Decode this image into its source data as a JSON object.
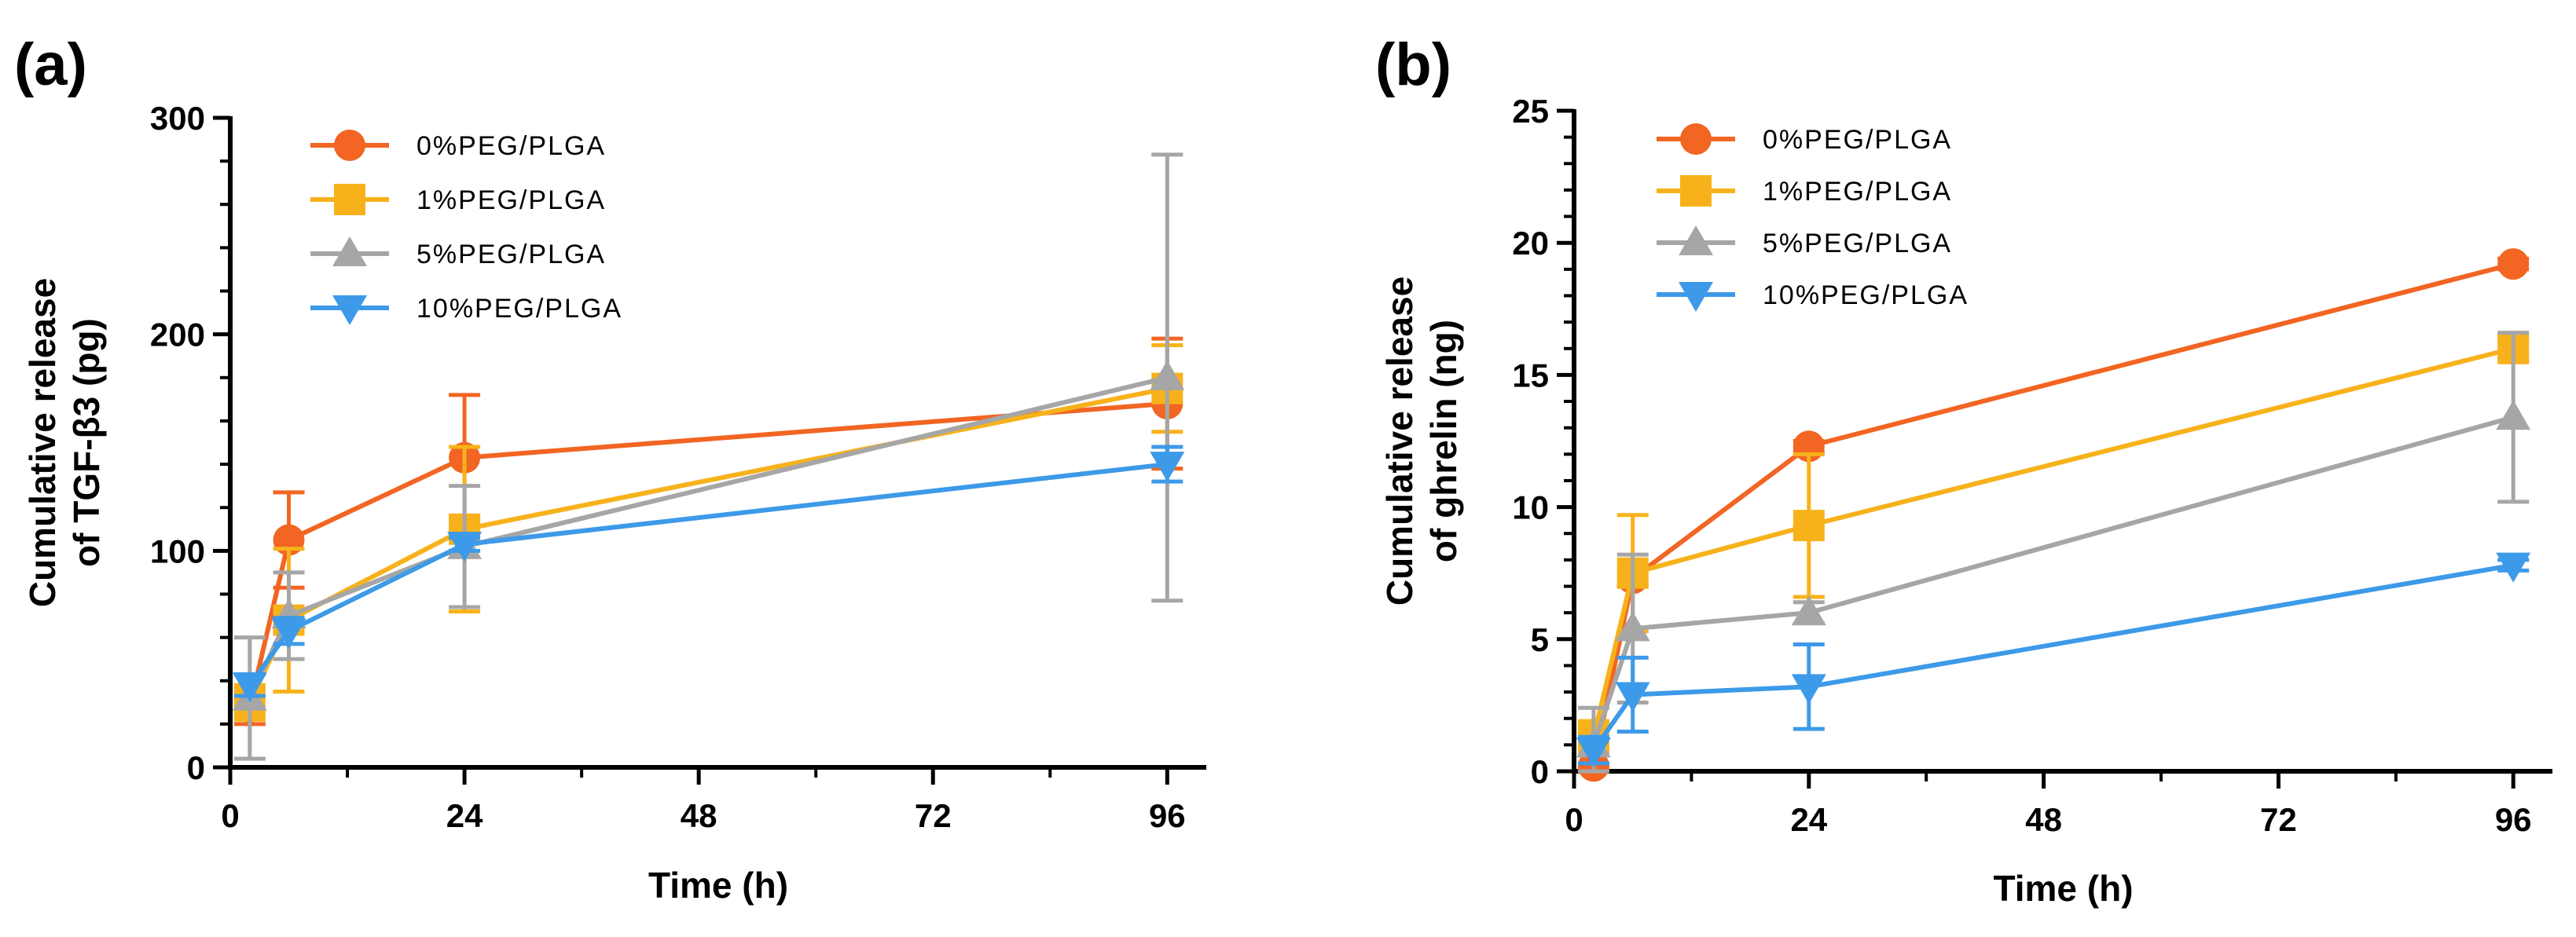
{
  "chart_data": [
    {
      "type": "line",
      "panel_label": "(a)",
      "xlabel": "Time (h)",
      "ylabel_line1": "Cumulative release",
      "ylabel_line2": "of TGF-β3 (pg)",
      "xlim": [
        0,
        100
      ],
      "ylim": [
        0,
        300
      ],
      "x_ticks": [
        0,
        24,
        48,
        72,
        96
      ],
      "x_tick_labels": [
        "0",
        "24",
        "48",
        "72",
        "96"
      ],
      "y_ticks": [
        0,
        100,
        200,
        300
      ],
      "y_tick_labels": [
        "0",
        "100",
        "200",
        "300"
      ],
      "x": [
        2,
        6,
        24,
        96
      ],
      "legend_position": "top-left",
      "series": [
        {
          "name": "0%PEG/PLGA",
          "color": "#f26522",
          "marker": "circle",
          "values": [
            28,
            105,
            143,
            168
          ],
          "errors": [
            8,
            22,
            29,
            30
          ]
        },
        {
          "name": "1%PEG/PLGA",
          "color": "#f7b21b",
          "marker": "square",
          "values": [
            30,
            68,
            110,
            175
          ],
          "errors": [
            8,
            33,
            38,
            20
          ]
        },
        {
          "name": "5%PEG/PLGA",
          "color": "#a6a6a6",
          "marker": "triangle-up",
          "values": [
            32,
            70,
            102,
            180
          ],
          "errors": [
            28,
            20,
            28,
            103
          ]
        },
        {
          "name": "10%PEG/PLGA",
          "color": "#3d9ae8",
          "marker": "triangle-down",
          "values": [
            38,
            63,
            103,
            140
          ],
          "errors": [
            5,
            6,
            3,
            8
          ]
        }
      ]
    },
    {
      "type": "line",
      "panel_label": "(b)",
      "xlabel": "Time (h)",
      "ylabel_line1": "Cumulative release",
      "ylabel_line2": "of ghrelin (ng)",
      "xlim": [
        0,
        100
      ],
      "ylim": [
        0,
        25
      ],
      "x_ticks": [
        0,
        24,
        48,
        72,
        96
      ],
      "x_tick_labels": [
        "0",
        "24",
        "48",
        "72",
        "96"
      ],
      "y_ticks": [
        0,
        5,
        10,
        15,
        20,
        25
      ],
      "y_tick_labels": [
        "0",
        "5",
        "10",
        "15",
        "20",
        "25"
      ],
      "x": [
        2,
        6,
        24,
        96
      ],
      "legend_position": "top-left",
      "series": [
        {
          "name": "0%PEG/PLGA",
          "color": "#f26522",
          "marker": "circle",
          "values": [
            0.2,
            7.3,
            12.3,
            19.2
          ],
          "errors": [
            0.1,
            0.3,
            0.2,
            0.2
          ]
        },
        {
          "name": "1%PEG/PLGA",
          "color": "#f7b21b",
          "marker": "square",
          "values": [
            1.3,
            7.5,
            9.3,
            16.0
          ],
          "errors": [
            0.6,
            2.2,
            2.7,
            0.4
          ]
        },
        {
          "name": "5%PEG/PLGA",
          "color": "#a6a6a6",
          "marker": "triangle-up",
          "values": [
            1.0,
            5.4,
            6.0,
            13.4
          ],
          "errors": [
            1.4,
            2.8,
            0.4,
            3.2
          ]
        },
        {
          "name": "10%PEG/PLGA",
          "color": "#3d9ae8",
          "marker": "triangle-down",
          "values": [
            0.8,
            2.9,
            3.2,
            7.8
          ],
          "errors": [
            0.5,
            1.4,
            1.6,
            0.2
          ]
        }
      ]
    }
  ]
}
